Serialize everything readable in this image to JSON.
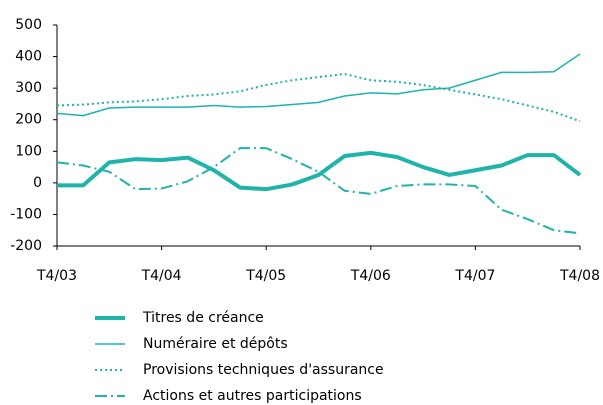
{
  "chart_data": {
    "type": "line",
    "categories": [
      "T4/03",
      null,
      null,
      null,
      "T4/04",
      null,
      null,
      null,
      "T4/05",
      null,
      null,
      null,
      "T4/06",
      null,
      null,
      null,
      "T4/07",
      null,
      null,
      null,
      "T4/08"
    ],
    "ylim": [
      -200,
      500
    ],
    "yticks": [
      -200,
      -100,
      0,
      100,
      200,
      300,
      400,
      500
    ],
    "series": [
      {
        "name": "Titres de créance",
        "color": "#1fb3aa",
        "line_style": "solid",
        "line_width": 4,
        "values": [
          -8,
          -8,
          65,
          75,
          72,
          80,
          40,
          -15,
          -20,
          -5,
          25,
          85,
          95,
          82,
          50,
          25,
          40,
          55,
          88,
          88,
          25
        ]
      },
      {
        "name": "Numéraire et dépôts",
        "color": "#1fb3aa",
        "line_style": "solid",
        "line_width": 1.5,
        "values": [
          220,
          213,
          237,
          240,
          240,
          240,
          245,
          240,
          242,
          248,
          255,
          275,
          285,
          282,
          295,
          300,
          325,
          350,
          350,
          352,
          408
        ]
      },
      {
        "name": "Provisions techniques d'assurance",
        "color": "#1fb3aa",
        "line_style": "dotted",
        "line_width": 2,
        "values": [
          245,
          248,
          255,
          258,
          265,
          275,
          280,
          290,
          310,
          325,
          335,
          345,
          325,
          320,
          310,
          295,
          280,
          265,
          245,
          225,
          195
        ]
      },
      {
        "name": "Actions et autres participations",
        "color": "#1fb3aa",
        "line_style": "dashdot",
        "line_width": 2,
        "values": [
          65,
          55,
          35,
          -20,
          -18,
          5,
          50,
          110,
          110,
          75,
          35,
          -25,
          -35,
          -10,
          -5,
          -5,
          -10,
          -85,
          -115,
          -150,
          -160
        ]
      }
    ]
  }
}
